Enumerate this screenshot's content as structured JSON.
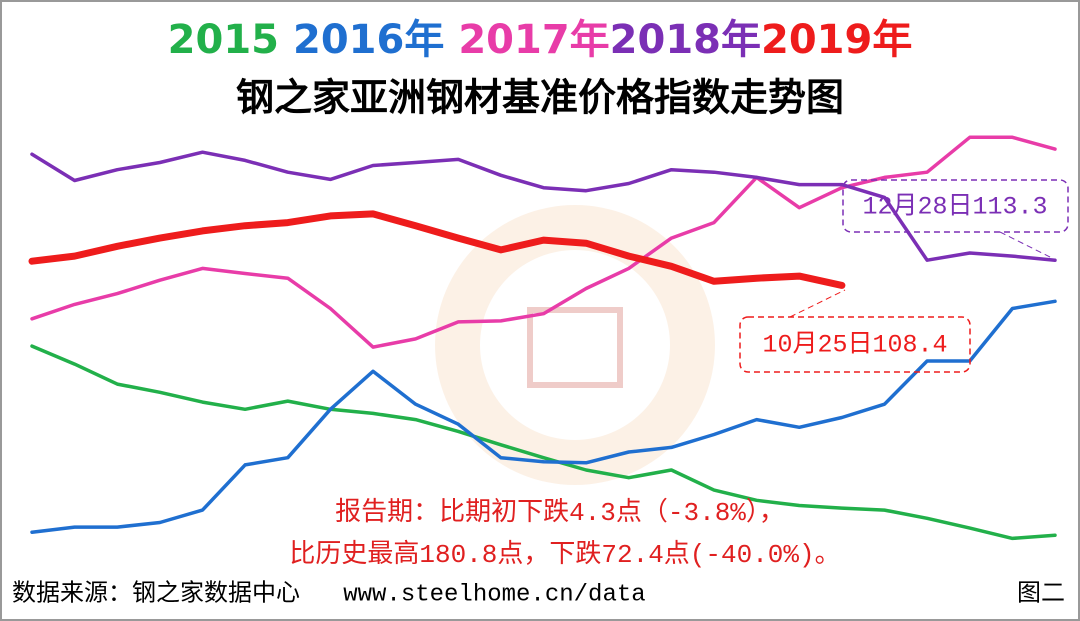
{
  "chart_data": {
    "type": "line",
    "title": "钢之家亚洲钢材基准价格指数走势图",
    "categories": [
      null,
      null,
      null,
      null,
      null,
      null,
      null,
      null,
      null,
      null,
      null,
      null,
      null,
      null,
      null,
      null,
      null,
      null,
      null,
      null,
      null,
      null,
      null,
      null,
      null
    ],
    "ylim": [
      55,
      139
    ],
    "series": [
      {
        "name": "2015",
        "color": "#22b04a",
        "values": [
          96.6,
          93.1,
          89.2,
          87.6,
          85.7,
          84.3,
          85.9,
          84.3,
          83.5,
          82.3,
          80.0,
          77.4,
          74.9,
          72.5,
          71.0,
          72.5,
          68.6,
          66.6,
          65.6,
          65.1,
          64.7,
          63.1,
          61.2,
          59.2,
          59.8
        ]
      },
      {
        "name": "2016年",
        "color": "#1f6fd0",
        "values": [
          60.4,
          61.4,
          61.4,
          62.3,
          64.7,
          73.5,
          74.9,
          84.3,
          91.7,
          85.3,
          81.4,
          74.9,
          74.1,
          73.9,
          76.0,
          76.9,
          79.4,
          82.3,
          80.8,
          82.7,
          85.3,
          93.7,
          93.7,
          103.9,
          105.3
        ]
      },
      {
        "name": "2017年",
        "color": "#e83ca8",
        "values": [
          101.9,
          104.7,
          106.8,
          109.4,
          111.7,
          110.7,
          109.8,
          103.9,
          96.4,
          98.0,
          101.3,
          101.5,
          102.9,
          107.8,
          111.7,
          117.6,
          120.6,
          129.4,
          123.5,
          127.4,
          129.4,
          130.4,
          137.2,
          137.2,
          134.9
        ]
      },
      {
        "name": "2018年",
        "color": "#7b2fb5",
        "values": [
          133.9,
          128.8,
          130.9,
          132.3,
          134.3,
          132.7,
          130.4,
          129.0,
          131.7,
          132.3,
          132.9,
          129.8,
          127.4,
          126.8,
          128.2,
          130.9,
          130.4,
          129.4,
          128.0,
          128.0,
          125.5,
          113.3,
          114.7,
          114.1,
          113.3
        ]
      },
      {
        "name": "2019年",
        "color": "#ee1c1c",
        "values": [
          113.1,
          114.1,
          116.0,
          117.6,
          119.0,
          120.0,
          120.6,
          121.9,
          122.3,
          120.0,
          117.6,
          115.3,
          117.2,
          116.6,
          114.1,
          112.1,
          109.2,
          109.8,
          110.2,
          108.4,
          null,
          null,
          null,
          null,
          null
        ]
      }
    ],
    "annotations": [
      "12月28日113.3",
      "10月25日108.4"
    ],
    "notes": [
      "报告期：比期初下跌4.3点（-3.8%），",
      "比历史最高180.8点，下跌72.4点(-40.0%)。"
    ],
    "source": "数据来源：钢之家数据中心   www.steelhome.cn/data",
    "figure_label": "图二"
  }
}
